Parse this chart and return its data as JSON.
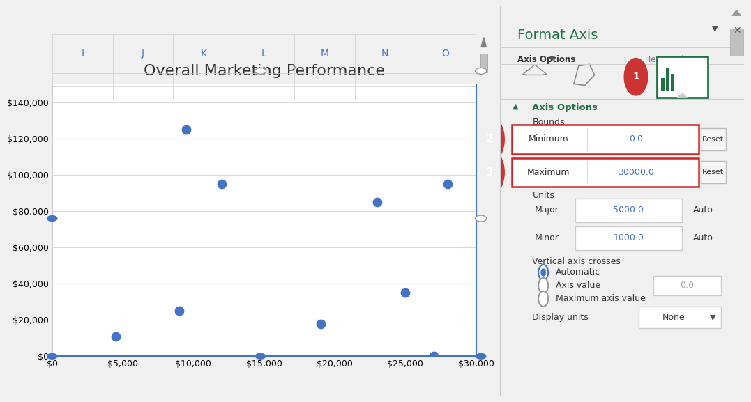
{
  "title": "Overall Marketing Performance",
  "scatter_x": [
    4500,
    9000,
    12000,
    19000,
    23000,
    25000,
    28000,
    9500,
    27000
  ],
  "scatter_y": [
    11000,
    25000,
    95000,
    18000,
    85000,
    35000,
    95000,
    125000,
    0
  ],
  "scatter_color": "#4472C4",
  "scatter_size": 80,
  "xlim": [
    0,
    30000
  ],
  "ylim": [
    0,
    150000
  ],
  "xticks": [
    0,
    5000,
    10000,
    15000,
    20000,
    25000,
    30000
  ],
  "yticks": [
    0,
    20000,
    40000,
    60000,
    80000,
    100000,
    120000,
    140000
  ],
  "bg_color": "#FFFFFF",
  "excel_header_bg": "#F2F2F2",
  "excel_col_labels": [
    "I",
    "J",
    "K",
    "L",
    "M",
    "N",
    "O"
  ],
  "panel_title": "Format Axis",
  "panel_title_color": "#217346",
  "axis_options_color": "#217346",
  "red_circle_color": "#CC3333",
  "minimum_value": "0.0",
  "maximum_value": "30000.0",
  "major_value": "5000.0",
  "minor_value": "1000.0",
  "axis_value": "0.0",
  "chart_border_color": "#4472C4",
  "grid_color": "#D9D9D9"
}
